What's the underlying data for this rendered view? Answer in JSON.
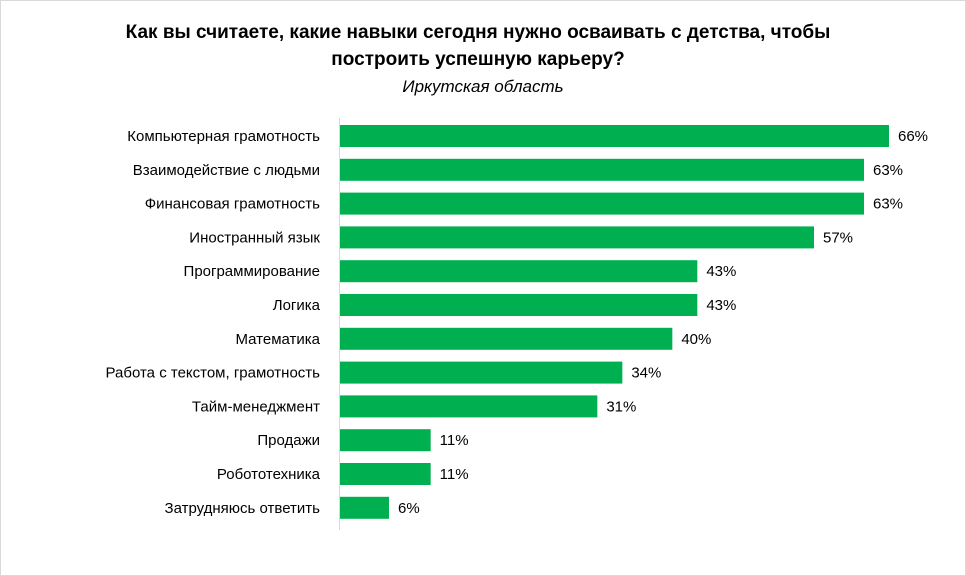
{
  "chart_data": {
    "type": "bar",
    "orientation": "horizontal",
    "title": "Как вы считаете, какие навыки сегодня нужно осваивать с детства, чтобы построить успешную карьеру?",
    "title_lines": [
      "Как вы считаете, какие навыки сегодня нужно осваивать с детства, чтобы",
      "построить успешную карьеру?"
    ],
    "subtitle": "Иркутская область",
    "categories": [
      "Компьютерная грамотность",
      "Взаимодействие с людьми",
      "Финансовая грамотность",
      "Иностранный язык",
      "Программирование",
      "Логика",
      "Математика",
      "Работа с текстом, грамотность",
      "Тайм-менеджмент",
      "Продажи",
      "Робототехника",
      "Затрудняюсь ответить"
    ],
    "values": [
      66,
      63,
      63,
      57,
      43,
      43,
      40,
      34,
      31,
      11,
      11,
      6
    ],
    "value_suffix": "%",
    "xlim": [
      0,
      66
    ],
    "grid": false,
    "legend": "none",
    "bar_color": "#00B050"
  }
}
